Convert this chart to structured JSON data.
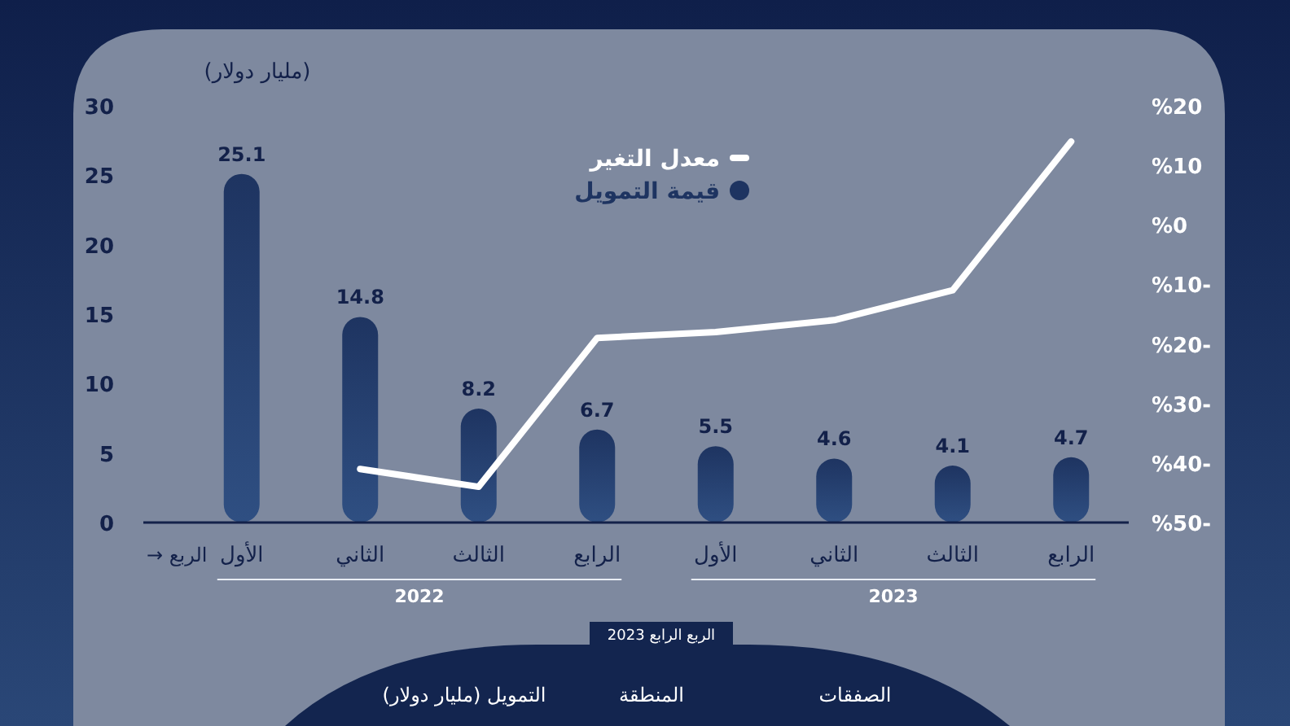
{
  "chart_data": {
    "type": "bar",
    "ylabel": "(مليار دولار)",
    "xlabel": "→ الربع",
    "categories": [
      "الأول",
      "الثاني",
      "الثالث",
      "الرابع",
      "الأول",
      "الثاني",
      "الثالث",
      "الرابع"
    ],
    "series": [
      {
        "name": "معدل التغير",
        "type": "line",
        "axis": "y2",
        "color": "#ffffff",
        "values": [
          null,
          -41,
          -44,
          -19,
          -18,
          -16,
          -11,
          14
        ]
      },
      {
        "name": "قيمة التمويل",
        "color": "#1e3461",
        "values": [
          25.1,
          14.8,
          8.2,
          6.7,
          5.5,
          4.6,
          4.1,
          4.7
        ],
        "value_labels": [
          "25.1",
          "14.8",
          "8.2",
          "6.7",
          "5.5",
          "4.6",
          "4.1",
          "4.7"
        ]
      }
    ],
    "ylim": [
      0,
      30
    ],
    "yticks": [
      0,
      5,
      10,
      15,
      20,
      25,
      30
    ],
    "y2lim": [
      -50,
      20
    ],
    "y2ticks": [
      {
        "value": 20,
        "label": "%20"
      },
      {
        "value": 10,
        "label": "%10"
      },
      {
        "value": 0,
        "label": "%0"
      },
      {
        "value": -10,
        "label": "%10-"
      },
      {
        "value": -20,
        "label": "%20-"
      },
      {
        "value": -30,
        "label": "%30-"
      },
      {
        "value": -40,
        "label": "%40-"
      },
      {
        "value": -50,
        "label": "%50-"
      }
    ],
    "legend": "top",
    "grid": false,
    "marker": "none",
    "line_style": "solid",
    "annotations": [
      "2022",
      "2023",
      "الربع الرابع 2023",
      "الصفقات",
      "المنطقة",
      "التمويل (مليار دولار)"
    ]
  }
}
